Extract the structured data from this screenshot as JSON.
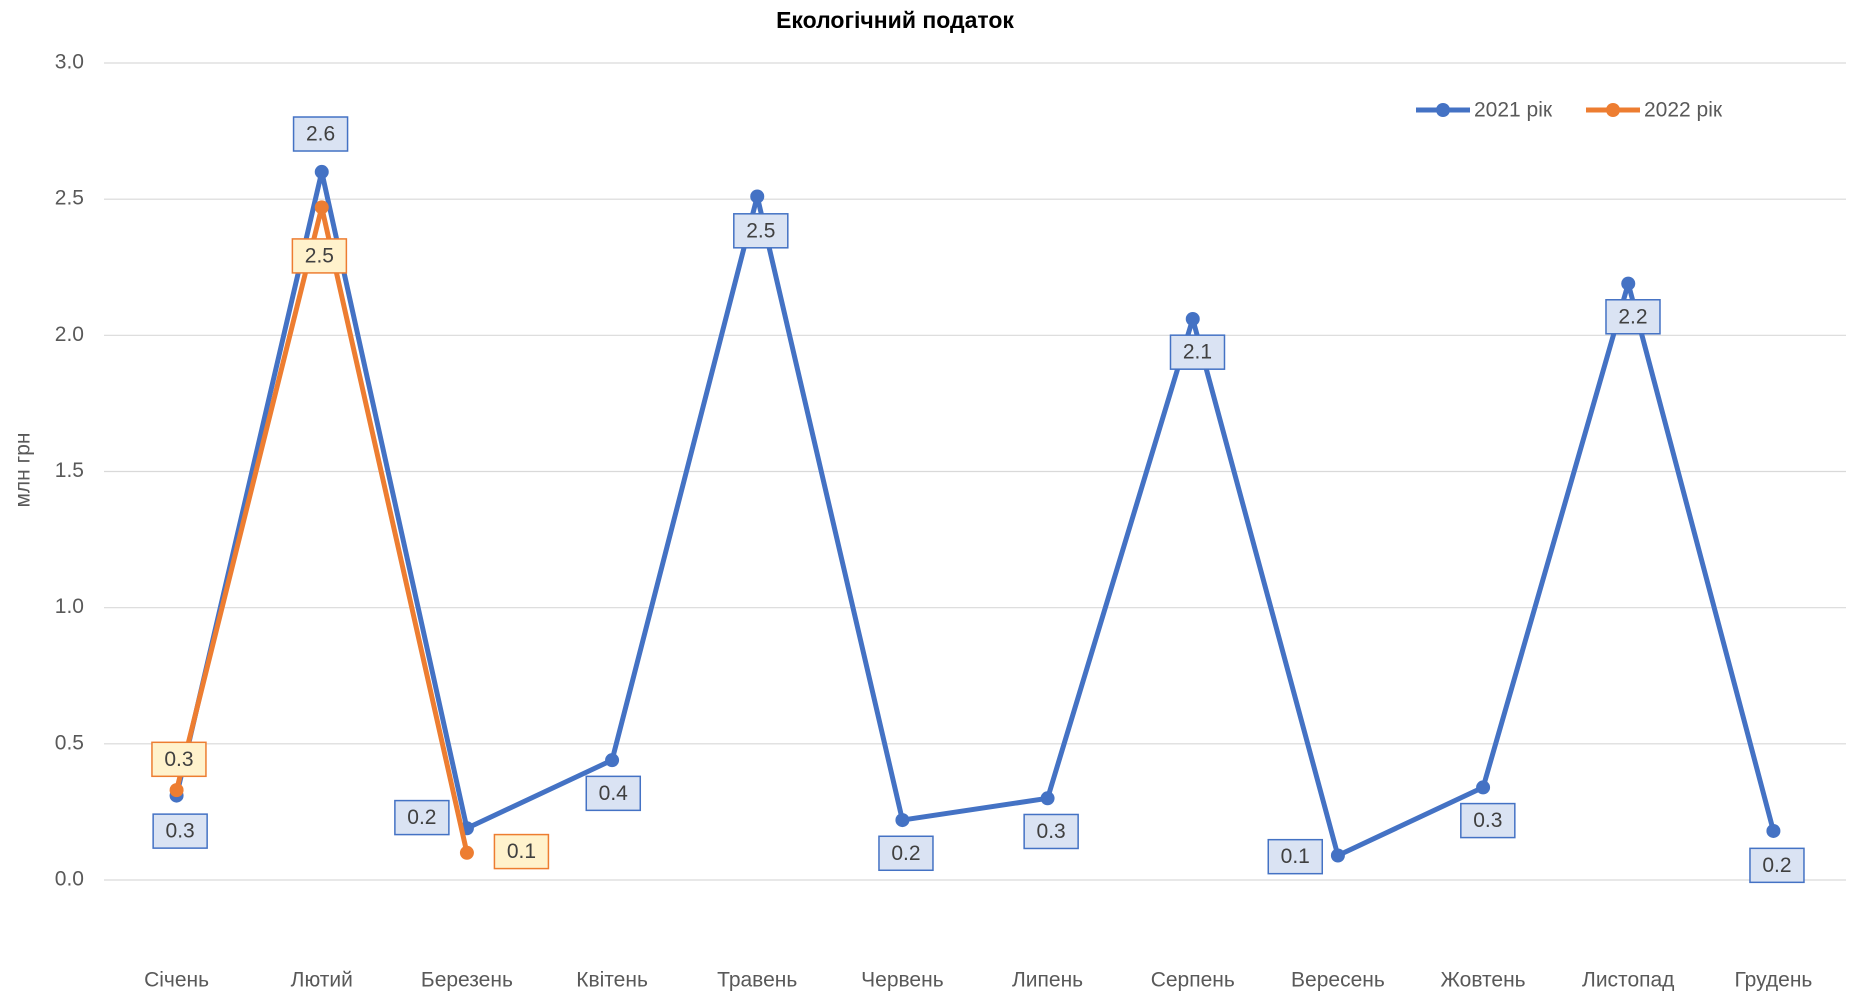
{
  "chart_data": {
    "type": "line",
    "title": "Екологічний податок",
    "y_label": "млн грн",
    "categories": [
      "Січень",
      "Лютий",
      "Березень",
      "Квітень",
      "Травень",
      "Червень",
      "Липень",
      "Серпень",
      "Вересень",
      "Жовтень",
      "Листопад",
      "Грудень"
    ],
    "series": [
      {
        "name": "2021 рік",
        "color": "#4472c4",
        "values": [
          0.31,
          2.6,
          0.19,
          0.44,
          2.51,
          0.22,
          0.3,
          2.06,
          0.09,
          0.34,
          2.19,
          0.18
        ],
        "value_labels": [
          "0.3",
          "2.6",
          "0.2",
          "0.4",
          "2.5",
          "0.2",
          "0.3",
          "2.1",
          "0.1",
          "0.3",
          "2.2",
          "0.2"
        ]
      },
      {
        "name": "2022 рік",
        "color": "#ed7d31",
        "values": [
          0.33,
          2.47,
          0.1,
          null,
          null,
          null,
          null,
          null,
          null,
          null,
          null,
          null
        ],
        "value_labels": [
          "0.3",
          "2.5",
          "0.1",
          null,
          null,
          null,
          null,
          null,
          null,
          null,
          null,
          null
        ]
      }
    ],
    "ylim": [
      0,
      3
    ],
    "yticks": [
      {
        "value": 0,
        "label": "0.0"
      },
      0.5,
      {
        "value": 1,
        "label": "1.0"
      },
      1.5,
      {
        "value": 2,
        "label": "2.0"
      },
      2.5,
      {
        "value": 3,
        "label": "3.0"
      }
    ],
    "grid": true,
    "legend": "top-right"
  }
}
